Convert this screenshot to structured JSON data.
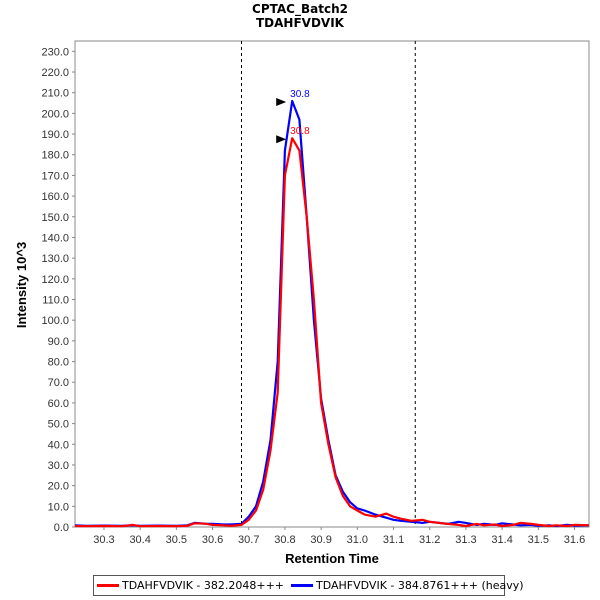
{
  "chart_data": {
    "type": "line",
    "title": "CPTAC_Batch2",
    "subtitle": "TDAHFVDVIK",
    "xlabel": "Retention Time",
    "ylabel": "Intensity 10^3",
    "xlim": [
      30.22,
      31.64
    ],
    "ylim": [
      0,
      235
    ],
    "xticks": [
      "30.3",
      "30.4",
      "30.5",
      "30.6",
      "30.7",
      "30.8",
      "30.9",
      "31.0",
      "31.1",
      "31.2",
      "31.3",
      "31.4",
      "31.5",
      "31.6"
    ],
    "yticks": [
      "0.0",
      "10.0",
      "20.0",
      "30.0",
      "40.0",
      "50.0",
      "60.0",
      "70.0",
      "80.0",
      "90.0",
      "100.0",
      "110.0",
      "120.0",
      "130.0",
      "140.0",
      "150.0",
      "160.0",
      "170.0",
      "180.0",
      "190.0",
      "200.0",
      "210.0",
      "220.0",
      "230.0"
    ],
    "grid": false,
    "legend_position": "bottom",
    "integration_bounds": [
      30.68,
      31.16
    ],
    "series": [
      {
        "name": "TDAHFVDVIK - 382.2048+++",
        "color": "#ff0000",
        "peak_label": "30.8",
        "peak": {
          "x": 30.82,
          "y": 188
        },
        "x": [
          30.22,
          30.25,
          30.3,
          30.35,
          30.38,
          30.4,
          30.45,
          30.5,
          30.53,
          30.55,
          30.58,
          30.6,
          30.63,
          30.65,
          30.68,
          30.7,
          30.72,
          30.74,
          30.76,
          30.78,
          30.8,
          30.82,
          30.84,
          30.86,
          30.88,
          30.9,
          30.92,
          30.94,
          30.96,
          30.98,
          31.0,
          31.02,
          31.05,
          31.08,
          31.1,
          31.12,
          31.15,
          31.18,
          31.2,
          31.25,
          31.28,
          31.3,
          31.33,
          31.35,
          31.38,
          31.4,
          31.43,
          31.45,
          31.48,
          31.5,
          31.53,
          31.55,
          31.58,
          31.6,
          31.64
        ],
        "values": [
          0.5,
          0.4,
          0.5,
          0.4,
          1.0,
          0.4,
          0.5,
          0.4,
          0.6,
          1.8,
          1.6,
          1.0,
          0.8,
          0.6,
          1.0,
          3.5,
          8.0,
          18.0,
          37.0,
          65.0,
          170.0,
          188.0,
          182.0,
          150.0,
          110.0,
          60.0,
          40.0,
          24.0,
          15.0,
          10.0,
          8.0,
          6.0,
          5.0,
          6.5,
          5.0,
          4.0,
          3.0,
          3.5,
          2.5,
          1.5,
          1.0,
          0.5,
          1.5,
          0.8,
          1.2,
          0.5,
          1.0,
          2.0,
          1.5,
          1.0,
          0.5,
          0.8,
          0.5,
          1.0,
          0.8
        ]
      },
      {
        "name": "TDAHFVDVIK - 384.8761+++ (heavy)",
        "color": "#0000ff",
        "peak_label": "30.8",
        "peak": {
          "x": 30.82,
          "y": 206
        },
        "x": [
          30.22,
          30.25,
          30.3,
          30.35,
          30.38,
          30.4,
          30.45,
          30.5,
          30.53,
          30.55,
          30.58,
          30.6,
          30.63,
          30.65,
          30.68,
          30.7,
          30.72,
          30.74,
          30.76,
          30.78,
          30.8,
          30.82,
          30.84,
          30.86,
          30.88,
          30.9,
          30.92,
          30.94,
          30.96,
          30.98,
          31.0,
          31.02,
          31.05,
          31.08,
          31.1,
          31.12,
          31.15,
          31.18,
          31.2,
          31.25,
          31.28,
          31.3,
          31.33,
          31.35,
          31.38,
          31.4,
          31.43,
          31.45,
          31.48,
          31.5,
          31.53,
          31.55,
          31.58,
          31.6,
          31.64
        ],
        "values": [
          0.8,
          0.6,
          0.7,
          0.6,
          0.8,
          0.6,
          0.7,
          0.6,
          0.8,
          2.0,
          1.6,
          1.5,
          1.2,
          1.2,
          1.5,
          5.0,
          10.0,
          22.0,
          42.0,
          80.0,
          182.0,
          206.0,
          197.0,
          150.0,
          100.0,
          62.0,
          42.0,
          25.0,
          17.0,
          12.0,
          9.0,
          8.0,
          6.0,
          4.5,
          3.5,
          3.0,
          2.5,
          2.0,
          2.5,
          1.5,
          2.5,
          2.0,
          1.0,
          1.5,
          1.0,
          1.8,
          1.2,
          0.8,
          1.0,
          0.6,
          0.8,
          0.5,
          1.0,
          0.7,
          0.8
        ]
      }
    ]
  }
}
